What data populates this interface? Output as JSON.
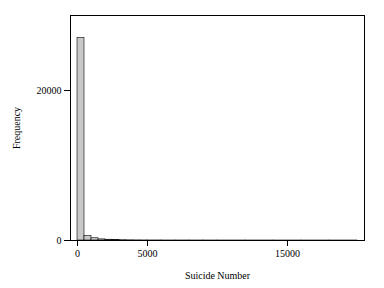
{
  "chart_data": {
    "type": "histogram",
    "xlabel": "Suicide Number",
    "ylabel": "Frequency",
    "bins": [
      0,
      500,
      1000,
      1500,
      2000,
      2500,
      3000,
      3500,
      4000,
      4500,
      5000,
      6000,
      7000,
      8000,
      9000,
      10000,
      12000,
      14000,
      16000,
      18000,
      20000
    ],
    "values": [
      27000,
      600,
      300,
      150,
      100,
      60,
      40,
      25,
      15,
      10,
      8,
      5,
      4,
      3,
      2,
      2,
      2,
      1,
      1,
      1
    ],
    "color": "#c8c8c8",
    "xlim": [
      -500,
      20500
    ],
    "ylim": [
      0,
      30000
    ],
    "xticks": [
      0,
      5000,
      15000
    ],
    "yticks": [
      0,
      20000
    ]
  }
}
